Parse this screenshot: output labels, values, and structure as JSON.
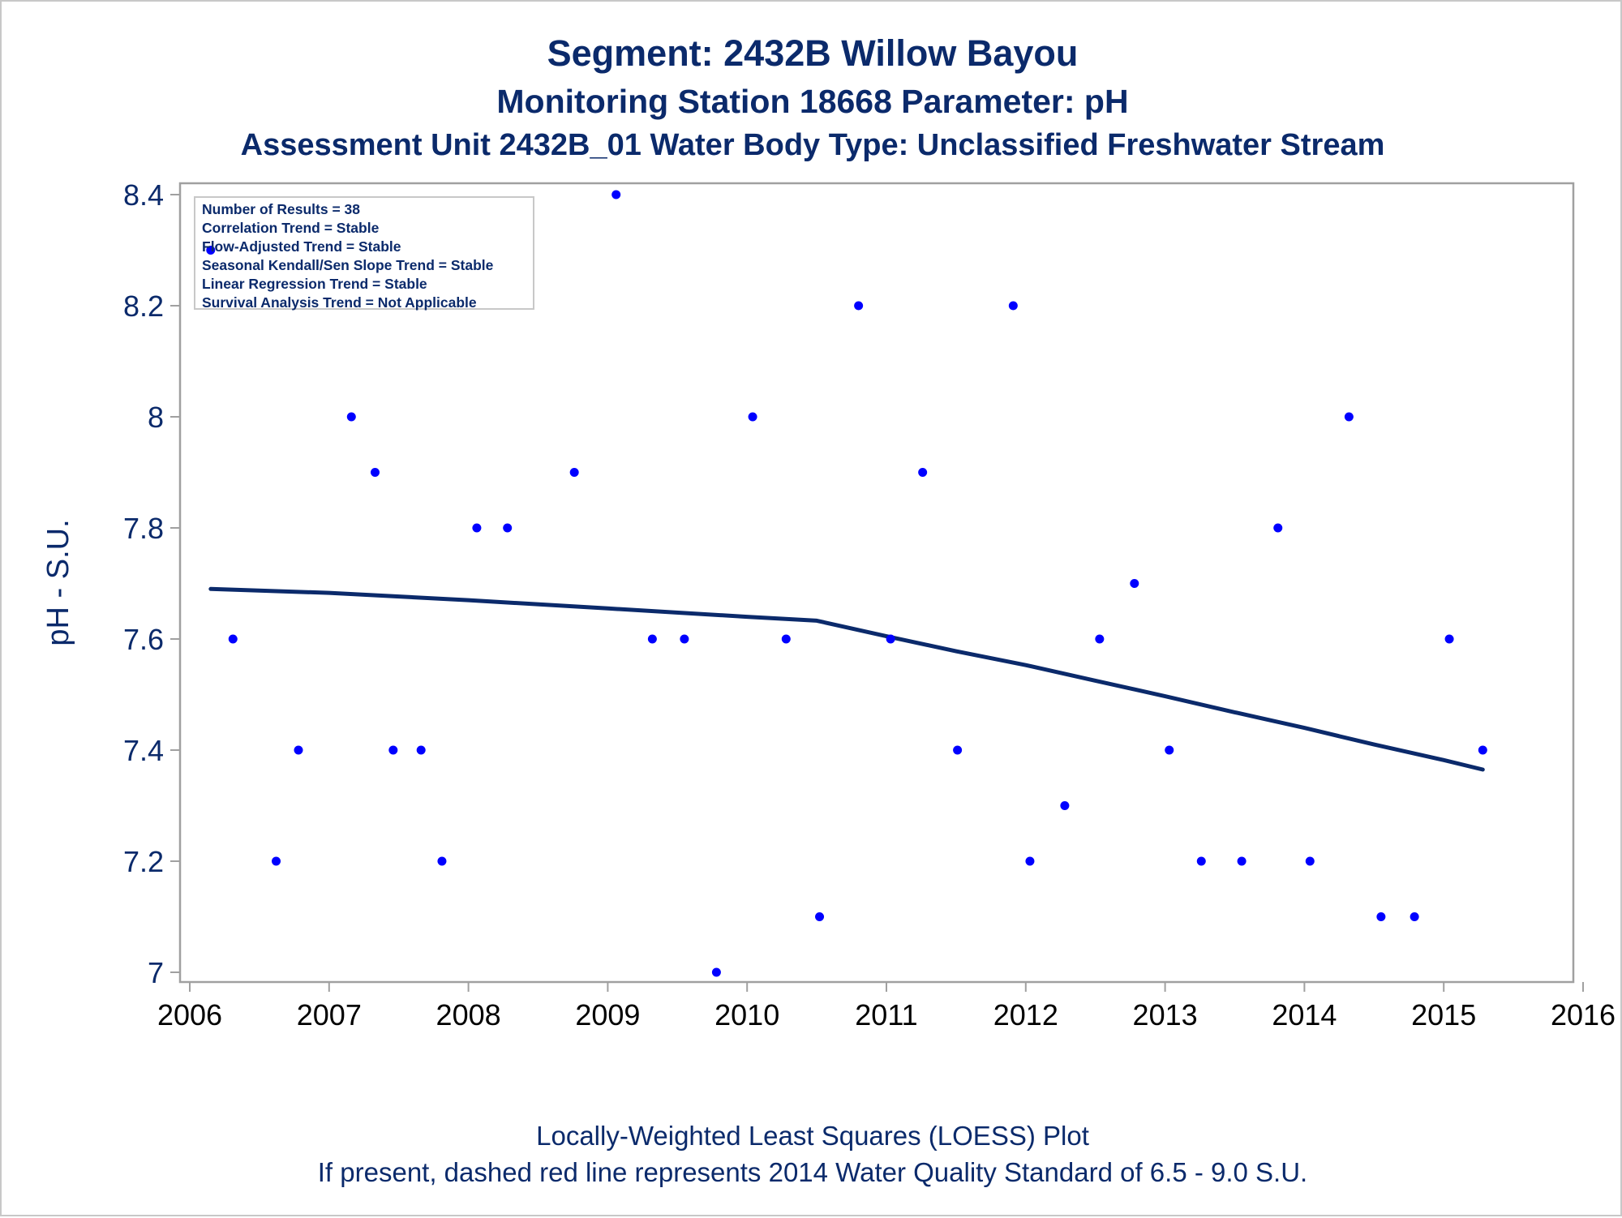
{
  "titles": {
    "line1": "Segment: 2432B  Willow Bayou",
    "line2": "Monitoring Station 18668 Parameter: pH",
    "line3": "Assessment Unit 2432B_01   Water Body Type: Unclassified Freshwater Stream"
  },
  "footnotes": {
    "line1": "Locally-Weighted Least Squares (LOESS) Plot",
    "line2": "If present, dashed red line represents 2014 Water Quality Standard of 6.5 - 9.0 S.U."
  },
  "stats": {
    "items": [
      "Number of Results = 38",
      "Correlation Trend = Stable",
      "Flow-Adjusted Trend = Stable",
      "Seasonal Kendall/Sen Slope Trend = Stable",
      "Linear Regression Trend = Stable",
      "Survival Analysis Trend = Not Applicable"
    ]
  },
  "colors": {
    "text": "#0b2a6b",
    "points": "#0000ff",
    "loess": "#0b2a6b",
    "frame": "#a0a0a0"
  },
  "chart_data": {
    "type": "scatter",
    "ylabel": "pH - S.U.",
    "xlabel": "",
    "xlim": [
      2006,
      2016
    ],
    "ylim": [
      7,
      8.4
    ],
    "x_ticks": [
      "2006",
      "2007",
      "2008",
      "2009",
      "2010",
      "2011",
      "2012",
      "2013",
      "2014",
      "2015",
      "2016"
    ],
    "y_ticks": [
      "7",
      "7.2",
      "7.4",
      "7.6",
      "7.8",
      "8",
      "8.2",
      "8.4"
    ],
    "grid": false,
    "series": [
      {
        "kind": "points",
        "x": [
          2006.15,
          2006.31,
          2006.62,
          2006.78,
          2007.16,
          2007.33,
          2007.46,
          2007.66,
          2007.81,
          2008.06,
          2008.28,
          2008.76,
          2009.06,
          2009.32,
          2009.55,
          2009.78,
          2010.04,
          2010.28,
          2010.52,
          2010.8,
          2011.03,
          2011.26,
          2011.51,
          2011.91,
          2012.03,
          2012.28,
          2012.53,
          2012.78,
          2013.03,
          2013.26,
          2013.55,
          2013.81,
          2014.04,
          2014.32,
          2014.55,
          2014.79,
          2015.04,
          2015.28
        ],
        "y": [
          8.3,
          7.6,
          7.2,
          7.4,
          8.0,
          7.9,
          7.4,
          7.4,
          7.2,
          7.8,
          7.8,
          7.9,
          8.4,
          7.6,
          7.6,
          7.0,
          8.0,
          7.6,
          7.1,
          8.2,
          7.6,
          7.9,
          7.4,
          8.2,
          7.2,
          7.3,
          7.6,
          7.7,
          7.4,
          7.2,
          7.2,
          7.8,
          7.2,
          8.0,
          7.1,
          7.1,
          7.6,
          7.4
        ]
      },
      {
        "kind": "loess-line",
        "x": [
          2006.15,
          2007.0,
          2008.0,
          2009.0,
          2010.0,
          2010.5,
          2011.0,
          2011.5,
          2012.0,
          2012.5,
          2013.0,
          2013.5,
          2014.0,
          2014.5,
          2015.0,
          2015.28
        ],
        "y": [
          7.69,
          7.683,
          7.67,
          7.655,
          7.64,
          7.633,
          7.605,
          7.578,
          7.553,
          7.525,
          7.497,
          7.468,
          7.44,
          7.41,
          7.382,
          7.365
        ]
      }
    ]
  }
}
